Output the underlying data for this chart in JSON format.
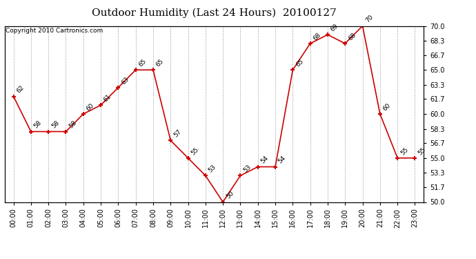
{
  "title": "Outdoor Humidity (Last 24 Hours)  20100127",
  "copyright": "Copyright 2010 Cartronics.com",
  "hours": [
    "00:00",
    "01:00",
    "02:00",
    "03:00",
    "04:00",
    "05:00",
    "06:00",
    "07:00",
    "08:00",
    "09:00",
    "10:00",
    "11:00",
    "12:00",
    "13:00",
    "14:00",
    "15:00",
    "16:00",
    "17:00",
    "18:00",
    "19:00",
    "20:00",
    "21:00",
    "22:00",
    "23:00"
  ],
  "values": [
    62,
    58,
    58,
    58,
    60,
    61,
    63,
    65,
    65,
    57,
    55,
    53,
    50,
    53,
    54,
    54,
    65,
    68,
    69,
    68,
    70,
    60,
    55,
    55
  ],
  "ylim": [
    50.0,
    70.0
  ],
  "yticks": [
    50.0,
    51.7,
    53.3,
    55.0,
    56.7,
    58.3,
    60.0,
    61.7,
    63.3,
    65.0,
    66.7,
    68.3,
    70.0
  ],
  "line_color": "#cc0000",
  "marker_color": "#cc0000",
  "grid_color": "#aaaaaa",
  "bg_color": "#ffffff",
  "title_fontsize": 11,
  "copyright_fontsize": 6.5,
  "label_fontsize": 6.5,
  "tick_fontsize": 7
}
